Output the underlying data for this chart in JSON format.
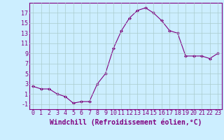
{
  "x": [
    0,
    1,
    2,
    3,
    4,
    5,
    6,
    7,
    8,
    9,
    10,
    11,
    12,
    13,
    14,
    15,
    16,
    17,
    18,
    19,
    20,
    21,
    22,
    23
  ],
  "y": [
    2.5,
    2.0,
    2.0,
    1.0,
    0.5,
    -0.8,
    -0.5,
    -0.5,
    3.0,
    5.0,
    10.0,
    13.5,
    16.0,
    17.5,
    18.0,
    17.0,
    15.5,
    13.5,
    13.0,
    8.5,
    8.5,
    8.5,
    8.0,
    9.0
  ],
  "line_color": "#800080",
  "marker": "D",
  "marker_size": 2.0,
  "bg_color": "#cceeff",
  "grid_color": "#aacccc",
  "xlabel": "Windchill (Refroidissement éolien,°C)",
  "yticks": [
    -1,
    1,
    3,
    5,
    7,
    9,
    11,
    13,
    15,
    17
  ],
  "xticks": [
    0,
    1,
    2,
    3,
    4,
    5,
    6,
    7,
    8,
    9,
    10,
    11,
    12,
    13,
    14,
    15,
    16,
    17,
    18,
    19,
    20,
    21,
    22,
    23
  ],
  "ylim": [
    -2.0,
    19.0
  ],
  "xlim": [
    -0.5,
    23.5
  ],
  "xlabel_fontsize": 7,
  "tick_fontsize": 6,
  "label_color": "#800080"
}
